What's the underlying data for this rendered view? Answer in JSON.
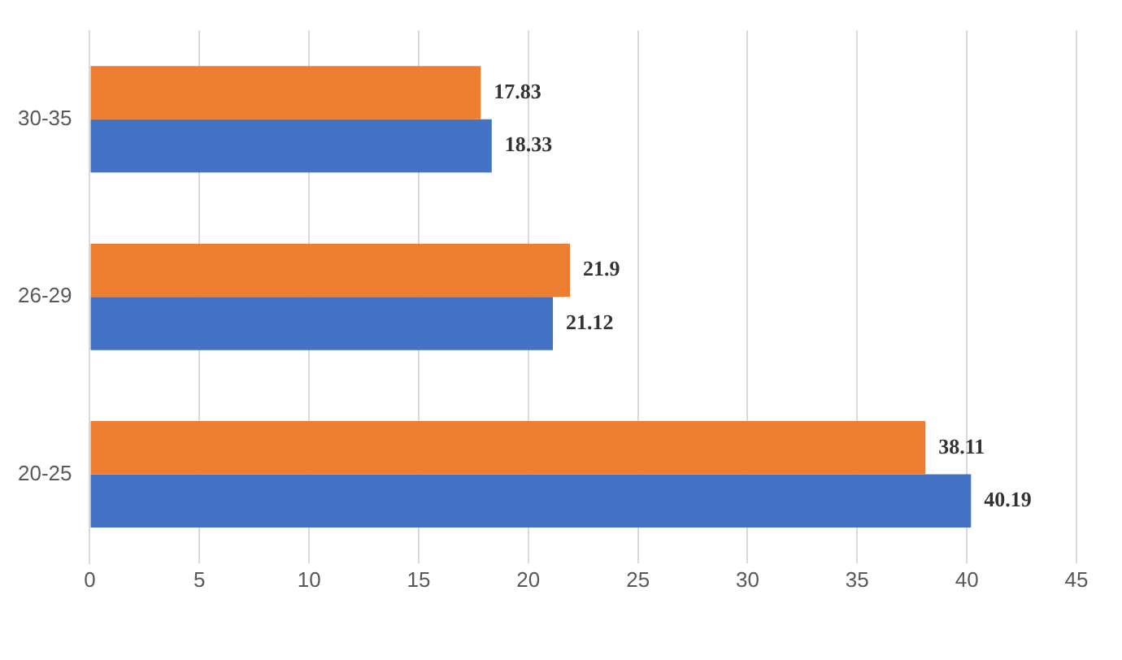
{
  "chart_data": {
    "type": "bar",
    "orientation": "horizontal",
    "categories": [
      "30-35",
      "26-29",
      "20-25"
    ],
    "series": [
      {
        "color": "#ed7d31",
        "values": [
          17.83,
          21.9,
          38.11
        ]
      },
      {
        "color": "#4472c4",
        "values": [
          18.33,
          21.12,
          40.19
        ]
      }
    ],
    "xlim": [
      0,
      45
    ],
    "xticks": [
      0,
      5,
      10,
      15,
      20,
      25,
      30,
      35,
      40,
      45
    ],
    "grid": "x",
    "data_labels": true
  }
}
